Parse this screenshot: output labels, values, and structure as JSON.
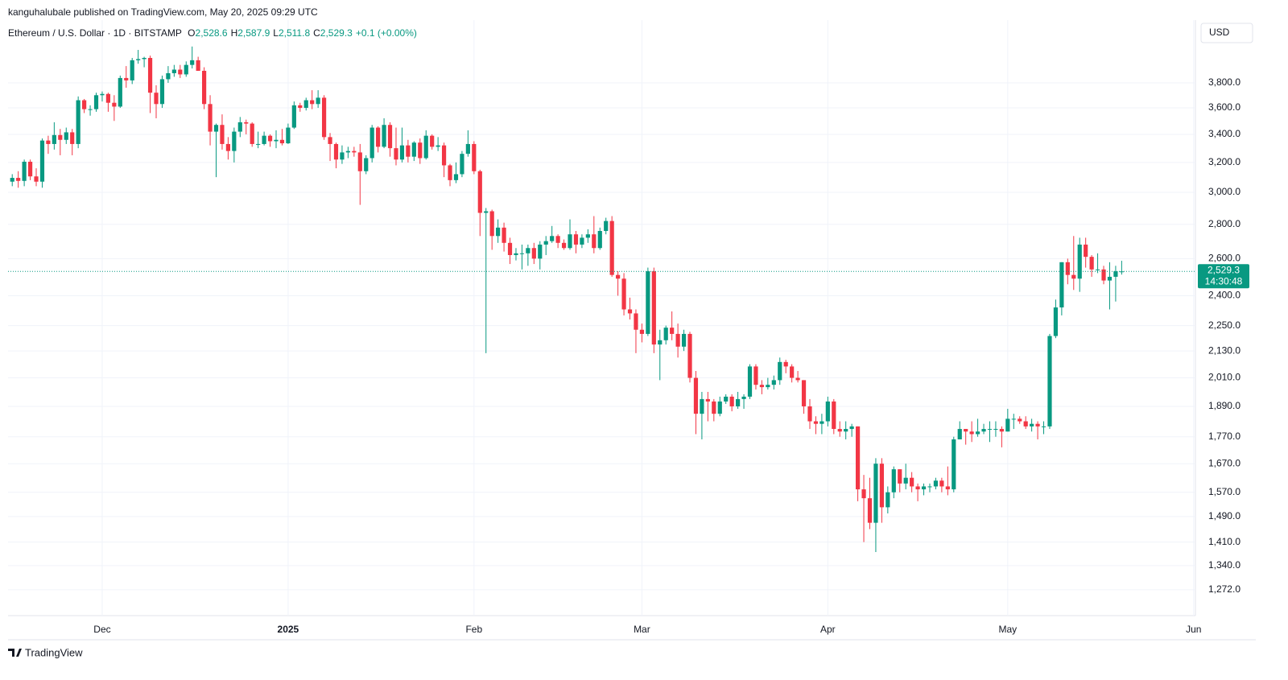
{
  "chart_data": {
    "type": "candlestick",
    "publisher": "kanguhalubale published on TradingView.com, May 20, 2025 09:29 UTC",
    "title": "Ethereum / U.S. Dollar · 1D · BITSTAMP",
    "ohlc_legend": [
      {
        "key": "O",
        "value": "2,528.6"
      },
      {
        "key": "H",
        "value": "2,587.9"
      },
      {
        "key": "L",
        "value": "2,511.8"
      },
      {
        "key": "C",
        "value": "2,529.3"
      }
    ],
    "change": "+0.1 (+0.00%)",
    "currency": "USD",
    "last_price": {
      "value": 2529.3,
      "label": "2,529.3"
    },
    "countdown": "14:30:48",
    "brand": "TradingView",
    "up_color": "#089981",
    "down_color": "#f23645",
    "log_scale": true,
    "grid": true,
    "ylim": [
      1203,
      4351
    ],
    "yticks": [
      {
        "value": 1272,
        "label": "1,272.0"
      },
      {
        "value": 1340,
        "label": "1,340.0"
      },
      {
        "value": 1410,
        "label": "1,410.0"
      },
      {
        "value": 1490,
        "label": "1,490.0"
      },
      {
        "value": 1570,
        "label": "1,570.0"
      },
      {
        "value": 1670,
        "label": "1,670.0"
      },
      {
        "value": 1770,
        "label": "1,770.0"
      },
      {
        "value": 1890,
        "label": "1,890.0"
      },
      {
        "value": 2010,
        "label": "2,010.0"
      },
      {
        "value": 2130,
        "label": "2,130.0"
      },
      {
        "value": 2250,
        "label": "2,250.0"
      },
      {
        "value": 2400,
        "label": "2,400.0"
      },
      {
        "value": 2600,
        "label": "2,600.0"
      },
      {
        "value": 2800,
        "label": "2,800.0"
      },
      {
        "value": 3000,
        "label": "3,000.0"
      },
      {
        "value": 3200,
        "label": "3,200.0"
      },
      {
        "value": 3400,
        "label": "3,400.0"
      },
      {
        "value": 3600,
        "label": "3,600.0"
      },
      {
        "value": 3800,
        "label": "3,800.0"
      }
    ],
    "xlim": [
      -0.7,
      197.3
    ],
    "xticks": [
      {
        "value": 15,
        "label": "Dec"
      },
      {
        "value": 46,
        "label": "2025"
      },
      {
        "value": 77,
        "label": "Feb"
      },
      {
        "value": 105,
        "label": "Mar"
      },
      {
        "value": 136,
        "label": "Apr"
      },
      {
        "value": 166,
        "label": "May"
      },
      {
        "value": 197,
        "label": "Jun"
      }
    ],
    "ohlc": [
      [
        3070,
        3120,
        3040,
        3095
      ],
      [
        3095,
        3140,
        3030,
        3075
      ],
      [
        3075,
        3220,
        3040,
        3205
      ],
      [
        3205,
        3220,
        3080,
        3105
      ],
      [
        3105,
        3160,
        3040,
        3070
      ],
      [
        3070,
        3370,
        3030,
        3355
      ],
      [
        3355,
        3390,
        3260,
        3330
      ],
      [
        3330,
        3490,
        3290,
        3395
      ],
      [
        3395,
        3440,
        3250,
        3360
      ],
      [
        3360,
        3450,
        3330,
        3415
      ],
      [
        3415,
        3440,
        3250,
        3330
      ],
      [
        3330,
        3690,
        3300,
        3660
      ],
      [
        3660,
        3670,
        3560,
        3590
      ],
      [
        3590,
        3620,
        3540,
        3590
      ],
      [
        3590,
        3720,
        3570,
        3700
      ],
      [
        3700,
        3730,
        3650,
        3710
      ],
      [
        3710,
        3720,
        3570,
        3640
      ],
      [
        3640,
        3700,
        3500,
        3610
      ],
      [
        3610,
        3860,
        3600,
        3840
      ],
      [
        3840,
        3940,
        3760,
        3820
      ],
      [
        3820,
        4010,
        3790,
        3990
      ],
      [
        3990,
        4080,
        3960,
        4000
      ],
      [
        4000,
        4020,
        3930,
        4010
      ],
      [
        4010,
        4030,
        3560,
        3720
      ],
      [
        3720,
        3780,
        3520,
        3630
      ],
      [
        3630,
        3860,
        3600,
        3830
      ],
      [
        3830,
        3940,
        3800,
        3880
      ],
      [
        3880,
        3950,
        3850,
        3910
      ],
      [
        3910,
        3950,
        3840,
        3870
      ],
      [
        3870,
        3980,
        3850,
        3950
      ],
      [
        3950,
        4110,
        3920,
        3990
      ],
      [
        3990,
        4020,
        3900,
        3900
      ],
      [
        3900,
        3930,
        3590,
        3630
      ],
      [
        3630,
        3700,
        3320,
        3420
      ],
      [
        3420,
        3480,
        3100,
        3470
      ],
      [
        3470,
        3550,
        3290,
        3330
      ],
      [
        3330,
        3380,
        3220,
        3280
      ],
      [
        3280,
        3450,
        3200,
        3420
      ],
      [
        3420,
        3530,
        3380,
        3490
      ],
      [
        3490,
        3510,
        3400,
        3480
      ],
      [
        3480,
        3490,
        3310,
        3330
      ],
      [
        3330,
        3420,
        3300,
        3330
      ],
      [
        3330,
        3420,
        3320,
        3390
      ],
      [
        3390,
        3400,
        3310,
        3350
      ],
      [
        3350,
        3430,
        3300,
        3360
      ],
      [
        3360,
        3440,
        3320,
        3335
      ],
      [
        3335,
        3480,
        3330,
        3450
      ],
      [
        3450,
        3650,
        3440,
        3620
      ],
      [
        3620,
        3640,
        3570,
        3600
      ],
      [
        3600,
        3680,
        3580,
        3660
      ],
      [
        3660,
        3740,
        3590,
        3630
      ],
      [
        3630,
        3740,
        3600,
        3680
      ],
      [
        3680,
        3700,
        3360,
        3380
      ],
      [
        3380,
        3410,
        3210,
        3330
      ],
      [
        3330,
        3340,
        3160,
        3220
      ],
      [
        3220,
        3320,
        3190,
        3270
      ],
      [
        3270,
        3310,
        3230,
        3280
      ],
      [
        3280,
        3310,
        3240,
        3270
      ],
      [
        3270,
        3330,
        2920,
        3140
      ],
      [
        3140,
        3250,
        3120,
        3230
      ],
      [
        3230,
        3470,
        3200,
        3450
      ],
      [
        3450,
        3460,
        3270,
        3310
      ],
      [
        3310,
        3520,
        3300,
        3470
      ],
      [
        3470,
        3490,
        3240,
        3300
      ],
      [
        3300,
        3450,
        3180,
        3220
      ],
      [
        3220,
        3450,
        3200,
        3320
      ],
      [
        3320,
        3360,
        3200,
        3240
      ],
      [
        3240,
        3350,
        3210,
        3340
      ],
      [
        3340,
        3370,
        3190,
        3230
      ],
      [
        3230,
        3430,
        3220,
        3390
      ],
      [
        3390,
        3400,
        3290,
        3310
      ],
      [
        3310,
        3380,
        3280,
        3320
      ],
      [
        3320,
        3340,
        3100,
        3180
      ],
      [
        3180,
        3190,
        3040,
        3080
      ],
      [
        3080,
        3200,
        3060,
        3120
      ],
      [
        3120,
        3280,
        3100,
        3260
      ],
      [
        3260,
        3430,
        3240,
        3330
      ],
      [
        3330,
        3350,
        3120,
        3140
      ],
      [
        3140,
        3150,
        2730,
        2870
      ],
      [
        2870,
        2900,
        2120,
        2880
      ],
      [
        2880,
        2890,
        2650,
        2730
      ],
      [
        2730,
        2830,
        2690,
        2780
      ],
      [
        2780,
        2810,
        2640,
        2690
      ],
      [
        2690,
        2720,
        2570,
        2620
      ],
      [
        2620,
        2660,
        2590,
        2630
      ],
      [
        2630,
        2680,
        2540,
        2630
      ],
      [
        2630,
        2680,
        2560,
        2660
      ],
      [
        2660,
        2690,
        2570,
        2600
      ],
      [
        2600,
        2700,
        2540,
        2680
      ],
      [
        2680,
        2730,
        2620,
        2700
      ],
      [
        2700,
        2790,
        2690,
        2730
      ],
      [
        2730,
        2740,
        2660,
        2690
      ],
      [
        2690,
        2710,
        2650,
        2660
      ],
      [
        2660,
        2830,
        2650,
        2740
      ],
      [
        2740,
        2760,
        2630,
        2680
      ],
      [
        2680,
        2740,
        2660,
        2720
      ],
      [
        2720,
        2770,
        2690,
        2740
      ],
      [
        2740,
        2850,
        2630,
        2660
      ],
      [
        2660,
        2780,
        2650,
        2760
      ],
      [
        2760,
        2840,
        2740,
        2820
      ],
      [
        2820,
        2850,
        2500,
        2510
      ],
      [
        2510,
        2530,
        2400,
        2490
      ],
      [
        2490,
        2520,
        2300,
        2330
      ],
      [
        2330,
        2390,
        2280,
        2310
      ],
      [
        2310,
        2330,
        2120,
        2230
      ],
      [
        2230,
        2260,
        2170,
        2210
      ],
      [
        2210,
        2550,
        2200,
        2530
      ],
      [
        2530,
        2550,
        2120,
        2160
      ],
      [
        2160,
        2230,
        2000,
        2180
      ],
      [
        2180,
        2250,
        2160,
        2240
      ],
      [
        2240,
        2320,
        2180,
        2210
      ],
      [
        2210,
        2260,
        2100,
        2150
      ],
      [
        2150,
        2230,
        2130,
        2210
      ],
      [
        2210,
        2220,
        1990,
        2010
      ],
      [
        2010,
        2040,
        1780,
        1860
      ],
      [
        1860,
        1950,
        1760,
        1920
      ],
      [
        1920,
        1950,
        1830,
        1910
      ],
      [
        1910,
        1920,
        1830,
        1860
      ],
      [
        1860,
        1930,
        1850,
        1910
      ],
      [
        1910,
        1940,
        1900,
        1930
      ],
      [
        1930,
        1940,
        1870,
        1890
      ],
      [
        1890,
        1950,
        1880,
        1920
      ],
      [
        1920,
        1940,
        1880,
        1930
      ],
      [
        1930,
        2070,
        1920,
        2060
      ],
      [
        2060,
        2070,
        1960,
        1980
      ],
      [
        1980,
        2000,
        1940,
        1970
      ],
      [
        1970,
        2010,
        1960,
        1980
      ],
      [
        1980,
        2020,
        1960,
        2000
      ],
      [
        2000,
        2100,
        1980,
        2080
      ],
      [
        2080,
        2090,
        2030,
        2060
      ],
      [
        2060,
        2070,
        1990,
        2010
      ],
      [
        2010,
        2040,
        1990,
        2000
      ],
      [
        2000,
        2000,
        1860,
        1890
      ],
      [
        1890,
        1920,
        1800,
        1830
      ],
      [
        1830,
        1850,
        1780,
        1820
      ],
      [
        1820,
        1860,
        1780,
        1830
      ],
      [
        1830,
        1930,
        1810,
        1910
      ],
      [
        1910,
        1920,
        1780,
        1800
      ],
      [
        1800,
        1830,
        1770,
        1790
      ],
      [
        1790,
        1830,
        1760,
        1800
      ],
      [
        1800,
        1820,
        1770,
        1810
      ],
      [
        1810,
        1810,
        1540,
        1580
      ],
      [
        1580,
        1630,
        1410,
        1550
      ],
      [
        1550,
        1620,
        1450,
        1470
      ],
      [
        1470,
        1690,
        1380,
        1670
      ],
      [
        1670,
        1690,
        1470,
        1520
      ],
      [
        1520,
        1590,
        1500,
        1570
      ],
      [
        1570,
        1660,
        1550,
        1650
      ],
      [
        1650,
        1650,
        1570,
        1600
      ],
      [
        1600,
        1670,
        1580,
        1620
      ],
      [
        1620,
        1640,
        1570,
        1590
      ],
      [
        1590,
        1600,
        1540,
        1580
      ],
      [
        1580,
        1600,
        1560,
        1590
      ],
      [
        1590,
        1600,
        1570,
        1590
      ],
      [
        1590,
        1620,
        1580,
        1610
      ],
      [
        1610,
        1620,
        1570,
        1590
      ],
      [
        1590,
        1660,
        1560,
        1580
      ],
      [
        1580,
        1770,
        1570,
        1760
      ],
      [
        1760,
        1830,
        1760,
        1800
      ],
      [
        1800,
        1800,
        1740,
        1790
      ],
      [
        1790,
        1830,
        1750,
        1780
      ],
      [
        1780,
        1840,
        1770,
        1790
      ],
      [
        1790,
        1820,
        1780,
        1800
      ],
      [
        1800,
        1830,
        1750,
        1800
      ],
      [
        1800,
        1830,
        1770,
        1800
      ],
      [
        1800,
        1810,
        1730,
        1790
      ],
      [
        1790,
        1880,
        1790,
        1840
      ],
      [
        1840,
        1860,
        1800,
        1840
      ],
      [
        1840,
        1850,
        1820,
        1830
      ],
      [
        1830,
        1850,
        1800,
        1810
      ],
      [
        1810,
        1840,
        1790,
        1820
      ],
      [
        1820,
        1830,
        1760,
        1810
      ],
      [
        1810,
        1830,
        1780,
        1810
      ],
      [
        1810,
        2210,
        1800,
        2200
      ],
      [
        2200,
        2380,
        2190,
        2340
      ],
      [
        2340,
        2580,
        2300,
        2580
      ],
      [
        2580,
        2600,
        2460,
        2510
      ],
      [
        2510,
        2730,
        2430,
        2490
      ],
      [
        2490,
        2720,
        2420,
        2680
      ],
      [
        2680,
        2720,
        2550,
        2610
      ],
      [
        2610,
        2620,
        2500,
        2540
      ],
      [
        2540,
        2630,
        2520,
        2540
      ],
      [
        2540,
        2560,
        2460,
        2480
      ],
      [
        2480,
        2580,
        2330,
        2500
      ],
      [
        2500,
        2560,
        2370,
        2530
      ],
      [
        2528.6,
        2587.9,
        2511.8,
        2529.3
      ]
    ]
  }
}
